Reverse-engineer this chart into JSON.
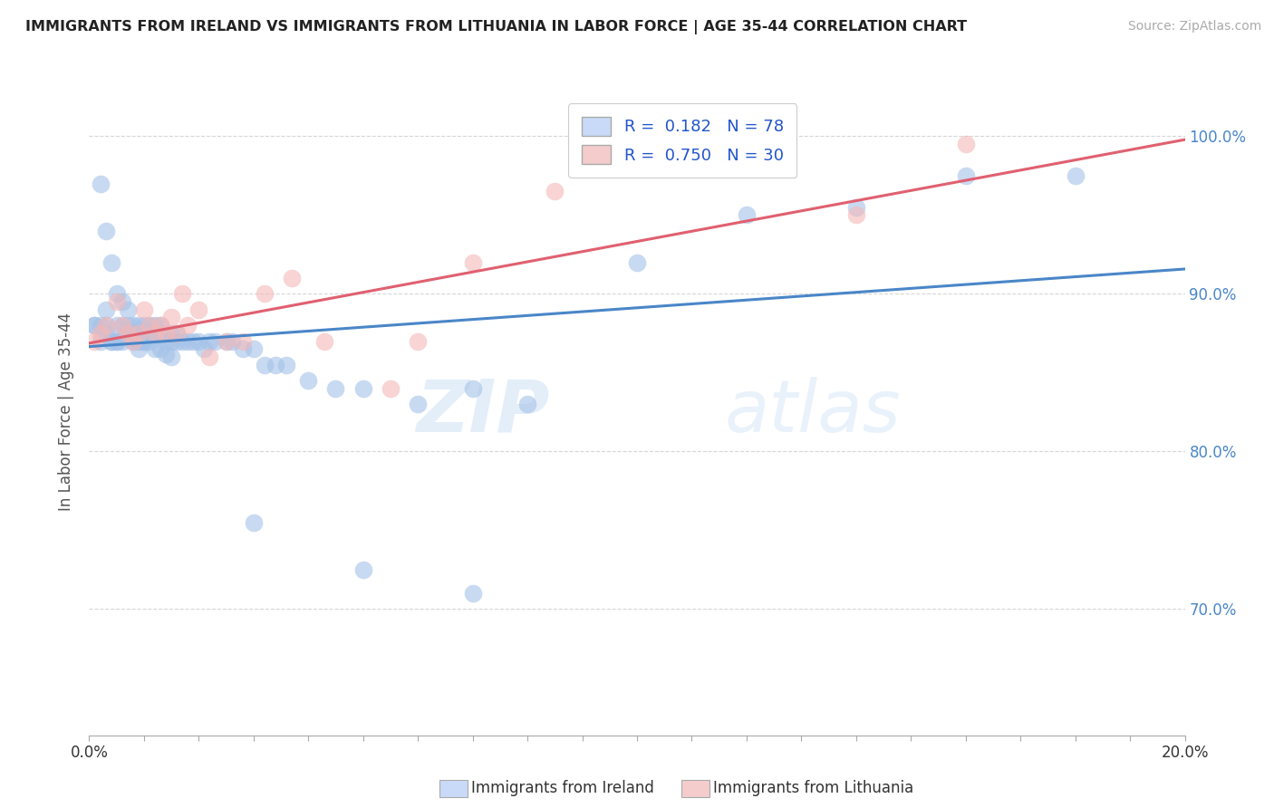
{
  "title": "IMMIGRANTS FROM IRELAND VS IMMIGRANTS FROM LITHUANIA IN LABOR FORCE | AGE 35-44 CORRELATION CHART",
  "source": "Source: ZipAtlas.com",
  "ylabel": "In Labor Force | Age 35-44",
  "x_min": 0.0,
  "x_max": 0.2,
  "y_min": 0.62,
  "y_max": 1.03,
  "ireland_R": 0.182,
  "ireland_N": 78,
  "lithuania_R": 0.75,
  "lithuania_N": 30,
  "ireland_color": "#a4c2e8",
  "lithuania_color": "#f4b8b8",
  "ireland_line_color": "#4a86c8",
  "lithuania_line_color": "#e06070",
  "legend_fill_ireland": "#c9daf8",
  "legend_fill_lithuania": "#f4cccc",
  "watermark_zip": "ZIP",
  "watermark_atlas": "atlas",
  "ireland_x": [
    0.001,
    0.002,
    0.002,
    0.003,
    0.003,
    0.003,
    0.004,
    0.004,
    0.005,
    0.005,
    0.005,
    0.006,
    0.006,
    0.007,
    0.007,
    0.007,
    0.008,
    0.008,
    0.008,
    0.009,
    0.009,
    0.01,
    0.01,
    0.01,
    0.011,
    0.011,
    0.012,
    0.012,
    0.013,
    0.013,
    0.014,
    0.015,
    0.015,
    0.016,
    0.016,
    0.017,
    0.018,
    0.019,
    0.02,
    0.021,
    0.022,
    0.023,
    0.025,
    0.026,
    0.028,
    0.03,
    0.032,
    0.034,
    0.036,
    0.04,
    0.045,
    0.05,
    0.06,
    0.07,
    0.08,
    0.1,
    0.12,
    0.14,
    0.16,
    0.18,
    0.001,
    0.002,
    0.003,
    0.004,
    0.005,
    0.006,
    0.007,
    0.008,
    0.009,
    0.01,
    0.011,
    0.012,
    0.013,
    0.014,
    0.015,
    0.03,
    0.05,
    0.07
  ],
  "ireland_y": [
    0.88,
    0.97,
    0.88,
    0.94,
    0.89,
    0.88,
    0.92,
    0.87,
    0.9,
    0.88,
    0.87,
    0.895,
    0.88,
    0.89,
    0.875,
    0.88,
    0.88,
    0.875,
    0.87,
    0.88,
    0.87,
    0.88,
    0.875,
    0.87,
    0.875,
    0.88,
    0.88,
    0.875,
    0.88,
    0.875,
    0.87,
    0.875,
    0.87,
    0.875,
    0.87,
    0.87,
    0.87,
    0.87,
    0.87,
    0.865,
    0.87,
    0.87,
    0.87,
    0.87,
    0.865,
    0.865,
    0.855,
    0.855,
    0.855,
    0.845,
    0.84,
    0.84,
    0.83,
    0.84,
    0.83,
    0.92,
    0.95,
    0.955,
    0.975,
    0.975,
    0.88,
    0.87,
    0.875,
    0.87,
    0.87,
    0.87,
    0.875,
    0.87,
    0.865,
    0.87,
    0.87,
    0.865,
    0.865,
    0.862,
    0.86,
    0.755,
    0.725,
    0.71
  ],
  "lithuania_x": [
    0.001,
    0.002,
    0.003,
    0.005,
    0.006,
    0.007,
    0.008,
    0.009,
    0.01,
    0.011,
    0.012,
    0.013,
    0.014,
    0.015,
    0.016,
    0.017,
    0.018,
    0.02,
    0.022,
    0.025,
    0.028,
    0.032,
    0.037,
    0.043,
    0.055,
    0.06,
    0.07,
    0.085,
    0.14,
    0.16
  ],
  "lithuania_y": [
    0.87,
    0.875,
    0.88,
    0.895,
    0.88,
    0.875,
    0.87,
    0.875,
    0.89,
    0.88,
    0.875,
    0.88,
    0.875,
    0.885,
    0.875,
    0.9,
    0.88,
    0.89,
    0.86,
    0.87,
    0.87,
    0.9,
    0.91,
    0.87,
    0.84,
    0.87,
    0.92,
    0.965,
    0.95,
    0.995
  ]
}
